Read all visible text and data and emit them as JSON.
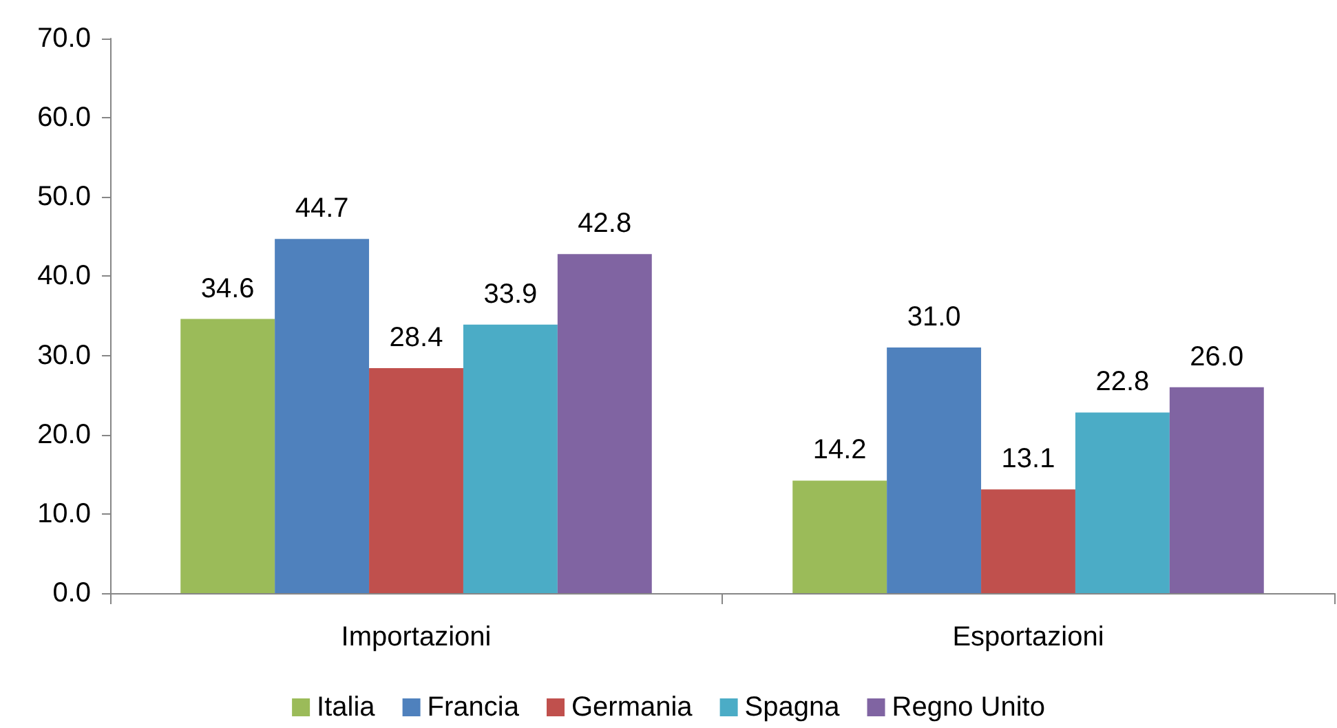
{
  "chart_data": {
    "type": "bar",
    "categories": [
      "Importazioni",
      "Esportazioni"
    ],
    "series": [
      {
        "name": "Italia",
        "color": "#9bbb59",
        "values": [
          34.6,
          14.2
        ],
        "value_labels": [
          "34.6",
          "14.2"
        ]
      },
      {
        "name": "Francia",
        "color": "#4f81bd",
        "values": [
          44.7,
          31.0
        ],
        "value_labels": [
          "44.7",
          "31.0"
        ]
      },
      {
        "name": "Germania",
        "color": "#c0504d",
        "values": [
          28.4,
          13.1
        ],
        "value_labels": [
          "28.4",
          "13.1"
        ]
      },
      {
        "name": "Spagna",
        "color": "#4bacc6",
        "values": [
          33.9,
          22.8
        ],
        "value_labels": [
          "33.9",
          "22.8"
        ]
      },
      {
        "name": "Regno Unito",
        "color": "#8064a2",
        "values": [
          42.8,
          26.0
        ],
        "value_labels": [
          "42.8",
          "26.0"
        ]
      }
    ],
    "ylim": [
      0,
      70
    ],
    "yticks": [
      {
        "value": 0,
        "label": "0.0"
      },
      {
        "value": 10,
        "label": "10.0"
      },
      {
        "value": 20,
        "label": "20.0"
      },
      {
        "value": 30,
        "label": "30.0"
      },
      {
        "value": 40,
        "label": "40.0"
      },
      {
        "value": 50,
        "label": "50.0"
      },
      {
        "value": 60,
        "label": "60.0"
      },
      {
        "value": 70,
        "label": "70.0"
      }
    ],
    "grid": false,
    "legend": "bottom"
  }
}
